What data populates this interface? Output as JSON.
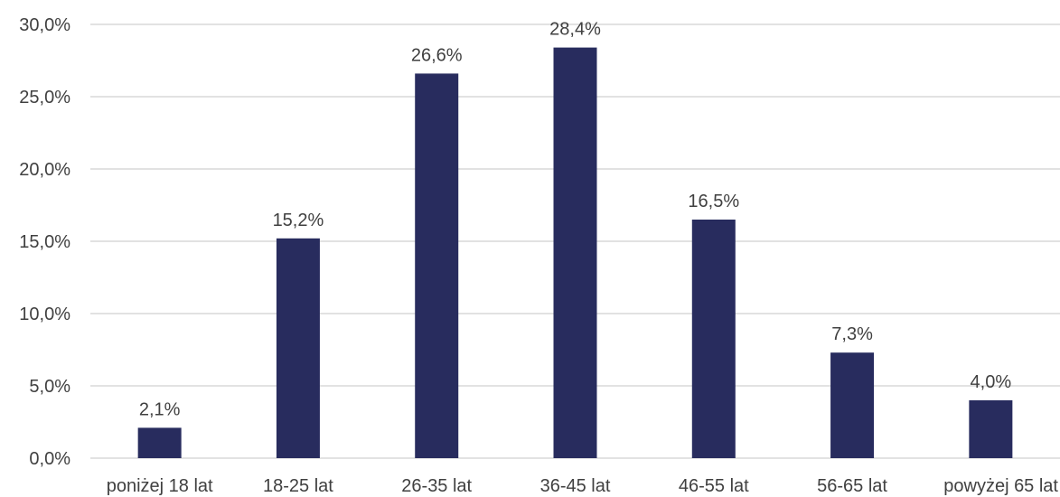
{
  "chart_data": {
    "type": "bar",
    "categories": [
      "poniżej 18 lat",
      "18-25 lat",
      "26-35 lat",
      "36-45 lat",
      "46-55 lat",
      "56-65 lat",
      "powyżej 65 lat"
    ],
    "values": [
      2.1,
      15.2,
      26.6,
      28.4,
      16.5,
      7.3,
      4.0
    ],
    "value_labels": [
      "2,1%",
      "15,2%",
      "26,6%",
      "28,4%",
      "16,5%",
      "7,3%",
      "4,0%"
    ],
    "yticks": [
      0,
      5,
      10,
      15,
      20,
      25,
      30
    ],
    "ytick_labels": [
      "0,0%",
      "5,0%",
      "10,0%",
      "15,0%",
      "20,0%",
      "25,0%",
      "30,0%"
    ],
    "ylim": [
      0,
      30
    ],
    "grid": true,
    "bar_color": "#282C5E",
    "title": "",
    "xlabel": "",
    "ylabel": ""
  }
}
